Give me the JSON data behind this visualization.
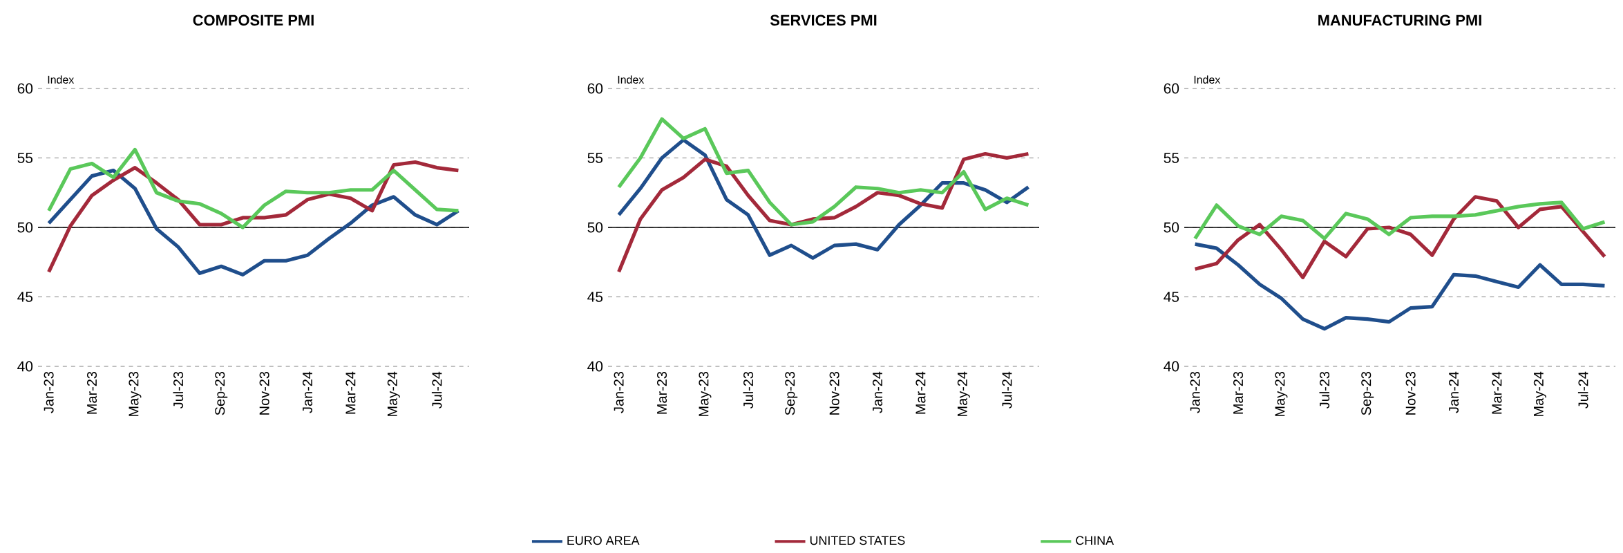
{
  "chart_data": [
    {
      "type": "line",
      "title": "COMPOSITE PMI",
      "ylabel": "Index",
      "categories": [
        "Jan-23",
        null,
        "Mar-23",
        null,
        "May-23",
        null,
        "Jul-23",
        null,
        "Sep-23",
        null,
        "Nov-23",
        null,
        "Jan-24",
        null,
        "Mar-24",
        null,
        "May-24",
        null,
        "Jul-24",
        null
      ],
      "ylim": [
        40,
        60
      ],
      "yticks": [
        40,
        45,
        50,
        55,
        60
      ],
      "grid": "y",
      "ref_lines": [
        {
          "axis": "y",
          "value": 50
        }
      ],
      "series": [
        {
          "color": "#1f4e8c",
          "values": [
            50.3,
            52.0,
            53.7,
            54.1,
            52.8,
            49.9,
            48.6,
            46.7,
            47.2,
            46.6,
            47.6,
            47.6,
            48.0,
            49.2,
            50.3,
            51.6,
            52.2,
            50.9,
            50.2,
            51.2
          ]
        },
        {
          "color": "#a3293a",
          "values": [
            46.8,
            50.1,
            52.3,
            53.4,
            54.3,
            53.2,
            52.0,
            50.2,
            50.2,
            50.7,
            50.7,
            50.9,
            52.0,
            52.4,
            52.1,
            51.2,
            54.5,
            54.7,
            54.3,
            54.1
          ]
        },
        {
          "color": "#5ac85a",
          "values": [
            51.2,
            54.2,
            54.6,
            53.6,
            55.6,
            52.5,
            51.9,
            51.7,
            51.0,
            50.0,
            51.6,
            52.6,
            52.5,
            52.5,
            52.7,
            52.7,
            54.1,
            52.7,
            51.3,
            51.2
          ]
        }
      ]
    },
    {
      "type": "line",
      "title": "SERVICES PMI",
      "ylabel": "Index",
      "categories": [
        "Jan-23",
        null,
        "Mar-23",
        null,
        "May-23",
        null,
        "Jul-23",
        null,
        "Sep-23",
        null,
        "Nov-23",
        null,
        "Jan-24",
        null,
        "Mar-24",
        null,
        "May-24",
        null,
        "Jul-24",
        null
      ],
      "ylim": [
        40,
        60
      ],
      "yticks": [
        40,
        45,
        50,
        55,
        60
      ],
      "grid": "y",
      "ref_lines": [
        {
          "axis": "y",
          "value": 50
        }
      ],
      "legend": "bottom",
      "series": [
        {
          "name": "EURO AREA",
          "color": "#1f4e8c",
          "values": [
            50.9,
            52.8,
            55.0,
            56.3,
            55.2,
            52.0,
            50.9,
            48.0,
            48.7,
            47.8,
            48.7,
            48.8,
            48.4,
            50.2,
            51.6,
            53.2,
            53.2,
            52.7,
            51.8,
            52.9
          ]
        },
        {
          "name": "UNITED STATES",
          "color": "#a3293a",
          "values": [
            46.8,
            50.6,
            52.7,
            53.6,
            54.9,
            54.4,
            52.3,
            50.5,
            50.2,
            50.6,
            50.7,
            51.5,
            52.5,
            52.3,
            51.7,
            51.4,
            54.9,
            55.3,
            55.0,
            55.3
          ]
        },
        {
          "name": "CHINA",
          "color": "#5ac85a",
          "values": [
            52.9,
            55.0,
            57.8,
            56.4,
            57.1,
            53.9,
            54.1,
            51.8,
            50.2,
            50.4,
            51.5,
            52.9,
            52.8,
            52.5,
            52.7,
            52.5,
            54.0,
            51.3,
            52.1,
            51.6
          ]
        }
      ]
    },
    {
      "type": "line",
      "title": "MANUFACTURING PMI",
      "ylabel": "Index",
      "categories": [
        "Jan-23",
        null,
        "Mar-23",
        null,
        "May-23",
        null,
        "Jul-23",
        null,
        "Sep-23",
        null,
        "Nov-23",
        null,
        "Jan-24",
        null,
        "Mar-24",
        null,
        "May-24",
        null,
        "Jul-24",
        null
      ],
      "ylim": [
        40,
        60
      ],
      "yticks": [
        40,
        45,
        50,
        55,
        60
      ],
      "grid": "y",
      "ref_lines": [
        {
          "axis": "y",
          "value": 50
        }
      ],
      "series": [
        {
          "color": "#1f4e8c",
          "values": [
            48.8,
            48.5,
            47.3,
            45.9,
            44.9,
            43.4,
            42.7,
            43.5,
            43.4,
            43.2,
            44.2,
            44.3,
            46.6,
            46.5,
            46.1,
            45.7,
            47.3,
            45.9,
            45.9,
            45.8
          ]
        },
        {
          "color": "#a3293a",
          "values": [
            47.0,
            47.4,
            49.1,
            50.2,
            48.4,
            46.4,
            49.0,
            47.9,
            49.9,
            50.0,
            49.5,
            48.0,
            50.6,
            52.2,
            51.9,
            50.0,
            51.3,
            51.5,
            49.7,
            47.9
          ]
        },
        {
          "color": "#5ac85a",
          "values": [
            49.2,
            51.6,
            50.1,
            49.5,
            50.8,
            50.5,
            49.2,
            51.0,
            50.6,
            49.5,
            50.7,
            50.8,
            50.8,
            50.9,
            51.2,
            51.5,
            51.7,
            51.8,
            49.9,
            50.4
          ]
        }
      ]
    }
  ]
}
